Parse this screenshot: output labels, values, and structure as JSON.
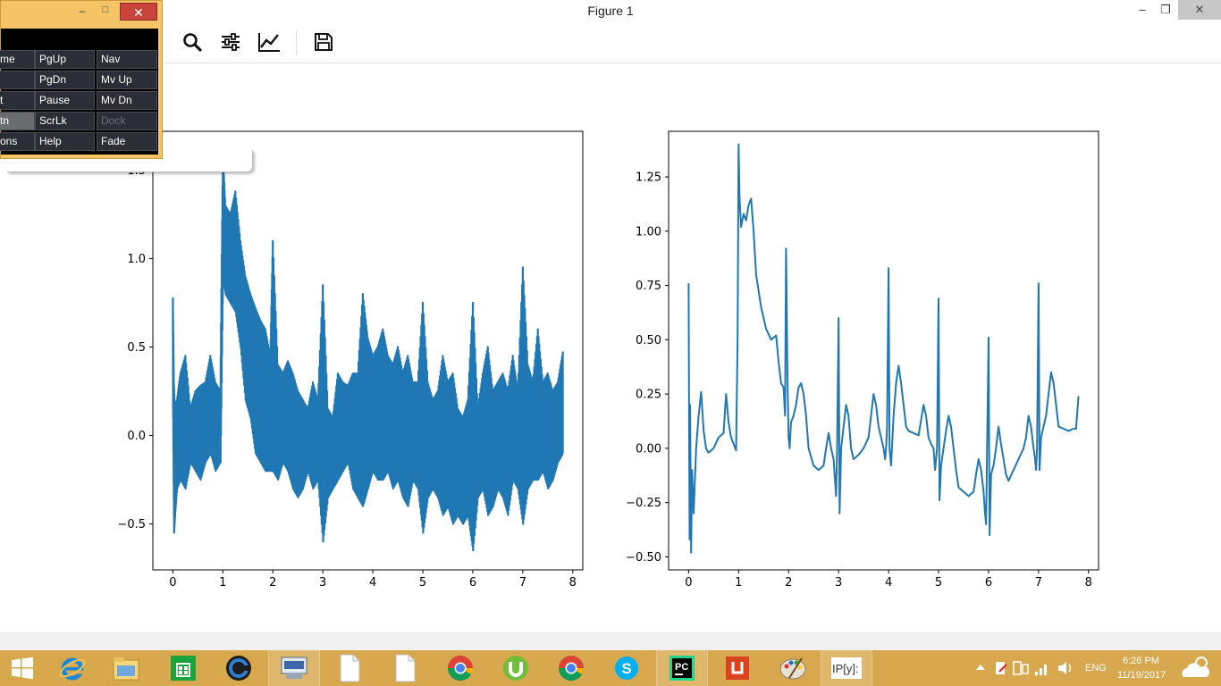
{
  "window": {
    "title": "Figure 1",
    "minimize": "–",
    "restore": "❐",
    "close": "✕"
  },
  "toolbar": {
    "buttons": [
      {
        "name": "zoom",
        "icon": "magnifier-icon"
      },
      {
        "name": "configure-subplots",
        "icon": "sliders-icon"
      },
      {
        "name": "edit-axis",
        "icon": "line-chart-icon"
      },
      {
        "name": "save",
        "icon": "floppy-disk-icon"
      }
    ]
  },
  "osk": {
    "minimize": "–",
    "maximize": "□",
    "close": "✕",
    "keys": [
      [
        "me",
        "PgUp",
        "Nav"
      ],
      [
        "",
        "PgDn",
        "Mv Up"
      ],
      [
        "t",
        "Pause",
        "Mv Dn"
      ],
      [
        "tn",
        "ScrLk",
        "Dock"
      ],
      [
        "ons",
        "Help",
        "Fade"
      ]
    ]
  },
  "chart_data": [
    {
      "type": "line",
      "title": "",
      "xlabel": "",
      "ylabel": "",
      "xlim": [
        -0.4,
        8.2
      ],
      "ylim": [
        -0.76,
        1.72
      ],
      "xticks": [
        "0",
        "1",
        "2",
        "3",
        "4",
        "5",
        "6",
        "7",
        "8"
      ],
      "yticks": [
        "−0.5",
        "0.0",
        "0.5",
        "1.0",
        "1.5"
      ],
      "color": "#1f77b4",
      "series": [
        {
          "x": [
            0.0,
            0.02,
            0.04,
            0.08,
            0.15,
            0.25,
            0.35,
            0.45,
            0.55,
            0.65,
            0.75,
            0.85,
            0.95,
            1.0,
            1.05,
            1.15,
            1.25,
            1.35,
            1.45,
            1.55,
            1.65,
            1.75,
            1.85,
            1.95,
            2.0,
            2.1,
            2.2,
            2.3,
            2.4,
            2.5,
            2.6,
            2.7,
            2.8,
            2.9,
            3.0,
            3.1,
            3.2,
            3.3,
            3.4,
            3.5,
            3.6,
            3.7,
            3.8,
            3.9,
            4.0,
            4.1,
            4.2,
            4.3,
            4.4,
            4.5,
            4.6,
            4.7,
            4.8,
            4.9,
            5.0,
            5.1,
            5.2,
            5.3,
            5.4,
            5.5,
            5.6,
            5.7,
            5.8,
            5.9,
            6.0,
            6.1,
            6.2,
            6.3,
            6.4,
            6.5,
            6.6,
            6.7,
            6.8,
            6.9,
            7.0,
            7.1,
            7.2,
            7.3,
            7.4,
            7.5,
            7.6,
            7.7,
            7.8
          ],
          "upper": [
            0.78,
            0.3,
            0.15,
            0.2,
            0.35,
            0.45,
            0.15,
            0.25,
            0.28,
            0.3,
            0.45,
            0.3,
            0.25,
            1.6,
            1.3,
            1.25,
            1.38,
            1.1,
            0.9,
            0.8,
            0.72,
            0.65,
            0.6,
            0.45,
            1.1,
            0.4,
            0.35,
            0.42,
            0.35,
            0.25,
            0.2,
            0.15,
            0.3,
            0.2,
            0.85,
            0.15,
            0.1,
            0.35,
            0.3,
            0.28,
            0.35,
            0.35,
            0.8,
            0.55,
            0.45,
            0.5,
            0.6,
            0.45,
            0.4,
            0.5,
            0.35,
            0.45,
            0.3,
            0.3,
            0.75,
            0.3,
            0.2,
            0.25,
            0.45,
            0.3,
            0.35,
            0.15,
            0.1,
            0.2,
            0.75,
            0.15,
            0.35,
            0.5,
            0.25,
            0.3,
            0.35,
            0.25,
            0.45,
            0.25,
            0.95,
            0.4,
            0.3,
            0.6,
            0.3,
            0.35,
            0.25,
            0.3,
            0.47
          ],
          "lower": [
            0.1,
            -0.55,
            -0.45,
            -0.3,
            -0.25,
            -0.3,
            -0.15,
            -0.2,
            -0.25,
            -0.15,
            -0.1,
            -0.2,
            -0.15,
            0.9,
            0.8,
            0.75,
            0.7,
            0.5,
            0.2,
            0.1,
            -0.1,
            -0.15,
            -0.2,
            -0.2,
            -0.2,
            -0.25,
            -0.15,
            -0.2,
            -0.3,
            -0.35,
            -0.3,
            -0.2,
            -0.3,
            -0.25,
            -0.6,
            -0.35,
            -0.3,
            -0.25,
            -0.2,
            -0.15,
            -0.3,
            -0.35,
            -0.4,
            -0.3,
            -0.2,
            -0.25,
            -0.25,
            -0.2,
            -0.3,
            -0.25,
            -0.35,
            -0.4,
            -0.25,
            -0.3,
            -0.55,
            -0.35,
            -0.3,
            -0.35,
            -0.45,
            -0.4,
            -0.5,
            -0.45,
            -0.5,
            -0.45,
            -0.65,
            -0.35,
            -0.3,
            -0.45,
            -0.4,
            -0.3,
            -0.35,
            -0.45,
            -0.25,
            -0.3,
            -0.5,
            -0.3,
            -0.25,
            -0.25,
            -0.2,
            -0.3,
            -0.25,
            -0.15,
            -0.1
          ]
        }
      ]
    },
    {
      "type": "line",
      "title": "",
      "xlabel": "",
      "ylabel": "",
      "xlim": [
        -0.4,
        8.2
      ],
      "ylim": [
        -0.56,
        1.46
      ],
      "xticks": [
        "0",
        "1",
        "2",
        "3",
        "4",
        "5",
        "6",
        "7",
        "8"
      ],
      "yticks": [
        "−0.50",
        "−0.25",
        "0.00",
        "0.25",
        "0.50",
        "0.75",
        "1.00",
        "1.25"
      ],
      "color": "#1f77b4",
      "series": [
        {
          "x": [
            0.0,
            0.01,
            0.02,
            0.03,
            0.05,
            0.07,
            0.1,
            0.15,
            0.2,
            0.25,
            0.3,
            0.35,
            0.4,
            0.5,
            0.6,
            0.7,
            0.75,
            0.8,
            0.85,
            0.9,
            0.95,
            0.98,
            1.0,
            1.02,
            1.05,
            1.1,
            1.15,
            1.2,
            1.25,
            1.3,
            1.35,
            1.45,
            1.55,
            1.65,
            1.75,
            1.8,
            1.85,
            1.9,
            1.93,
            1.95,
            1.98,
            2.0,
            2.02,
            2.05,
            2.1,
            2.15,
            2.2,
            2.25,
            2.3,
            2.35,
            2.4,
            2.5,
            2.6,
            2.7,
            2.75,
            2.8,
            2.85,
            2.9,
            2.93,
            2.95,
            2.97,
            3.0,
            3.02,
            3.05,
            3.1,
            3.15,
            3.2,
            3.25,
            3.3,
            3.4,
            3.5,
            3.6,
            3.7,
            3.75,
            3.8,
            3.85,
            3.9,
            3.93,
            3.95,
            3.97,
            4.0,
            4.02,
            4.05,
            4.1,
            4.15,
            4.2,
            4.25,
            4.3,
            4.35,
            4.4,
            4.5,
            4.6,
            4.7,
            4.75,
            4.8,
            4.85,
            4.9,
            4.93,
            4.95,
            4.97,
            5.0,
            5.02,
            5.05,
            5.1,
            5.15,
            5.2,
            5.25,
            5.3,
            5.35,
            5.4,
            5.5,
            5.6,
            5.7,
            5.75,
            5.8,
            5.85,
            5.9,
            5.93,
            5.95,
            5.97,
            6.0,
            6.02,
            6.05,
            6.1,
            6.15,
            6.2,
            6.25,
            6.3,
            6.35,
            6.4,
            6.5,
            6.6,
            6.7,
            6.75,
            6.8,
            6.85,
            6.9,
            6.93,
            6.95,
            6.97,
            7.0,
            7.02,
            7.05,
            7.1,
            7.15,
            7.2,
            7.25,
            7.3,
            7.35,
            7.4,
            7.5,
            7.6,
            7.7,
            7.75,
            7.8
          ],
          "y": [
            0.76,
            0.15,
            -0.42,
            0.2,
            -0.48,
            -0.1,
            -0.3,
            0.0,
            0.15,
            0.26,
            0.08,
            0.0,
            -0.02,
            0.0,
            0.05,
            0.07,
            0.25,
            0.12,
            0.05,
            0.02,
            -0.01,
            0.5,
            1.4,
            1.15,
            1.02,
            1.08,
            1.05,
            1.12,
            1.15,
            1.0,
            0.8,
            0.65,
            0.55,
            0.5,
            0.52,
            0.4,
            0.3,
            0.28,
            0.15,
            0.92,
            0.3,
            0.05,
            0.0,
            0.12,
            0.15,
            0.2,
            0.28,
            0.3,
            0.25,
            0.15,
            0.0,
            -0.08,
            -0.1,
            -0.08,
            0.0,
            0.07,
            0.0,
            -0.05,
            -0.15,
            -0.22,
            0.0,
            0.6,
            -0.3,
            0.0,
            0.1,
            0.2,
            0.15,
            0.0,
            -0.05,
            -0.03,
            0.0,
            0.05,
            0.25,
            0.2,
            0.1,
            0.05,
            0.0,
            -0.05,
            0.0,
            0.1,
            0.83,
            0.0,
            -0.08,
            0.15,
            0.3,
            0.38,
            0.3,
            0.2,
            0.1,
            0.08,
            0.07,
            0.06,
            0.2,
            0.15,
            0.05,
            0.02,
            0.0,
            -0.1,
            -0.05,
            0.0,
            0.69,
            -0.24,
            -0.08,
            0.0,
            0.08,
            0.15,
            0.1,
            0.0,
            -0.1,
            -0.18,
            -0.2,
            -0.22,
            -0.2,
            -0.12,
            -0.05,
            -0.1,
            -0.2,
            -0.3,
            -0.35,
            0.0,
            0.51,
            -0.4,
            -0.12,
            -0.08,
            0.0,
            0.1,
            0.02,
            -0.05,
            -0.12,
            -0.15,
            -0.1,
            -0.05,
            0.0,
            0.05,
            0.15,
            0.1,
            0.0,
            -0.05,
            -0.1,
            0.0,
            0.76,
            -0.1,
            0.05,
            0.1,
            0.15,
            0.25,
            0.35,
            0.3,
            0.2,
            0.1,
            0.09,
            0.08,
            0.09,
            0.09,
            0.24
          ]
        }
      ]
    }
  ],
  "taskbar": {
    "items": [
      {
        "name": "start-button",
        "icon": "windows-logo-icon",
        "open": false
      },
      {
        "name": "internet-explorer",
        "icon": "internet-explorer-icon",
        "open": false
      },
      {
        "name": "file-explorer",
        "icon": "folder-icon",
        "open": false
      },
      {
        "name": "store",
        "icon": "store-icon",
        "open": false
      },
      {
        "name": "app-ccleaner",
        "icon": "circle-logo-icon",
        "open": false
      },
      {
        "name": "on-screen-keyboard",
        "icon": "keyboard-icon",
        "open": true
      },
      {
        "name": "document-1",
        "icon": "document-icon",
        "open": false
      },
      {
        "name": "document-2",
        "icon": "document-icon",
        "open": false
      },
      {
        "name": "chrome-1",
        "icon": "chrome-icon",
        "open": false
      },
      {
        "name": "utorrent",
        "icon": "utorrent-icon",
        "open": false
      },
      {
        "name": "chrome-2",
        "icon": "chrome-icon",
        "open": false
      },
      {
        "name": "skype",
        "icon": "skype-icon",
        "open": false
      },
      {
        "name": "pycharm",
        "icon": "pycharm-icon",
        "open": true
      },
      {
        "name": "app-red",
        "icon": "red-app-icon",
        "open": false
      },
      {
        "name": "paint",
        "icon": "palette-icon",
        "open": false
      },
      {
        "name": "ipython",
        "icon": "ipython-icon",
        "open": true
      }
    ],
    "ipython_label": "IP[y]:",
    "pycharm_label": "PC",
    "tray": {
      "language": "ENG",
      "time": "6:26 PM",
      "date": "11/19/2017"
    }
  }
}
